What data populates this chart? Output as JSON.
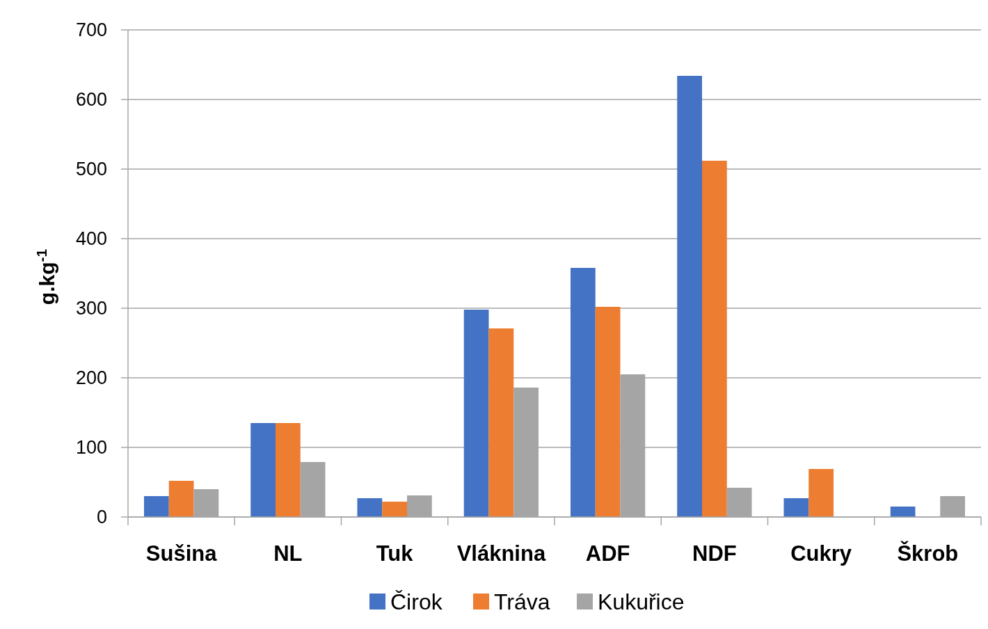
{
  "chart_data": {
    "type": "bar",
    "ylabel": "g.kg$^{-1}$",
    "categories": [
      "Sušina",
      "NL",
      "Tuk",
      "Vláknina",
      "ADF",
      "NDF",
      "Cukry",
      "Škrob"
    ],
    "series": [
      {
        "name": "Čirok",
        "color": "#4472c4",
        "values": [
          30,
          135,
          27,
          298,
          358,
          634,
          27,
          15
        ]
      },
      {
        "name": "Tráva",
        "color": "#ed7d31",
        "values": [
          52,
          135,
          22,
          271,
          302,
          512,
          69,
          null
        ]
      },
      {
        "name": "Kukuřice",
        "color": "#a5a5a5",
        "values": [
          40,
          79,
          31,
          186,
          205,
          42,
          null,
          30
        ]
      }
    ],
    "ylim": [
      0,
      700
    ],
    "yticks": [
      0,
      100,
      200,
      300,
      400,
      500,
      600,
      700
    ],
    "grid": "y",
    "legend": "bottom"
  }
}
